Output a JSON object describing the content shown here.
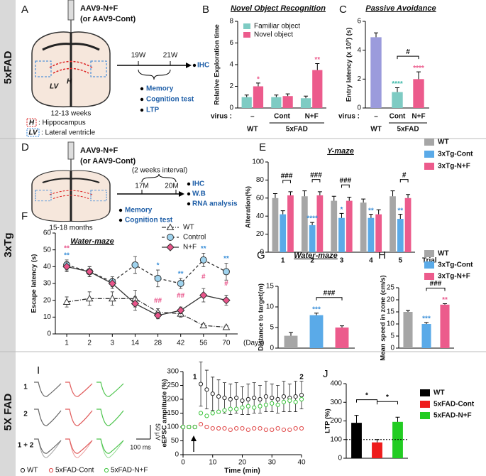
{
  "side_labels": [
    "5xFAD",
    "3xTg",
    "5X FAD"
  ],
  "panel_letters": [
    "A",
    "B",
    "C",
    "D",
    "E",
    "F",
    "G",
    "H",
    "I",
    "J"
  ],
  "diagram_a": {
    "vector": "AAV9-N+F",
    "control_vector": "(or AAV9-Cont)",
    "timepoints": [
      "19W",
      "21W"
    ],
    "endpoint": "IHC",
    "tests": [
      "Memory",
      "Cognition test",
      "LTP"
    ],
    "age": "12-13 weeks",
    "region_labels": [
      "LV",
      "H"
    ],
    "legend": [
      {
        "abbr": "H",
        "text": ": Hippocampus"
      },
      {
        "abbr": "LV",
        "text": ": Lateral ventricle"
      }
    ]
  },
  "diagram_d": {
    "vector": "AAV9-N+F",
    "control_vector": "(or AAV9-Cont)",
    "interval": "(2 weeks interval)",
    "timepoints": [
      "17M",
      "20M"
    ],
    "endpoints": [
      "IHC",
      "W.B",
      "RNA analysis"
    ],
    "tests": [
      "Memory",
      "Cognition test"
    ],
    "age": "15-18 months"
  },
  "panel_i": {
    "rows": [
      "1",
      "2",
      "1 + 2"
    ],
    "time_scale": "100 ms",
    "amp_scale": "50 μV"
  },
  "chart_data": [
    {
      "type": "bar",
      "title": "Novel Object Recognition",
      "y_label": "Relative Exploration time",
      "x_row_label": "virus :",
      "categories": [
        "–",
        "Cont",
        "N+F"
      ],
      "groups": [
        {
          "label": "WT",
          "span": [
            0,
            0
          ]
        },
        {
          "label": "5xFAD",
          "span": [
            1,
            2
          ]
        }
      ],
      "series": [
        {
          "name": "Familiar object",
          "color": "#7ecbc3",
          "values": [
            1.0,
            1.0,
            0.9
          ],
          "errors": [
            0.2,
            0.2,
            0.2
          ]
        },
        {
          "name": "Novel object",
          "color": "#ec5b8c",
          "values": [
            2.0,
            1.1,
            3.5
          ],
          "errors": [
            0.3,
            0.2,
            0.6
          ]
        }
      ],
      "ylim": [
        0,
        8
      ],
      "yticks": [
        0,
        2,
        4,
        6,
        8
      ],
      "annotations": [
        {
          "text": "*",
          "series": 1,
          "category": 0,
          "color": "#ec5b8c"
        },
        {
          "text": "**",
          "series": 1,
          "category": 2,
          "color": "#ec5b8c"
        }
      ]
    },
    {
      "type": "bar",
      "title": "Passive Avoidance",
      "y_label": "Entry latency (x 10²) (s)",
      "x_row_label": "virus :",
      "categories": [
        "–",
        "Cont",
        "N+F"
      ],
      "groups": [
        {
          "label": "WT",
          "span": [
            0,
            0
          ]
        },
        {
          "label": "5xFAD",
          "span": [
            1,
            2
          ]
        }
      ],
      "series": [
        {
          "values": [
            4.9,
            1.1,
            2.0
          ],
          "errors": [
            0.3,
            0.3,
            0.5
          ],
          "colors": [
            "#9b9bdc",
            "#7ecbc3",
            "#ec5b8c"
          ]
        }
      ],
      "ylim": [
        0,
        6
      ],
      "yticks": [
        0,
        2,
        4,
        6
      ],
      "annotations": [
        {
          "text": "****",
          "series": 0,
          "category": 1,
          "color": "#3cb8a8"
        },
        {
          "text": "****",
          "series": 0,
          "category": 2,
          "color": "#ec5b8c"
        },
        {
          "text": "#",
          "between_categories": [
            1,
            2
          ]
        }
      ]
    },
    {
      "type": "bar",
      "title": "Y-maze",
      "y_label": "Alteration(%)",
      "categories": [
        "1",
        "2",
        "3",
        "4",
        "5"
      ],
      "x_label": "Trial",
      "series": [
        {
          "name": "WT",
          "color": "#a6a6a6",
          "values": [
            60,
            62,
            57,
            55,
            62
          ],
          "errors": [
            5,
            6,
            5,
            4,
            6
          ]
        },
        {
          "name": "3xTg-Cont",
          "color": "#5aaae8",
          "values": [
            42,
            30,
            38,
            38,
            37
          ],
          "errors": [
            4,
            3,
            5,
            4,
            5
          ]
        },
        {
          "name": "3xTg-N+F",
          "color": "#ec5b8c",
          "values": [
            63,
            63,
            57,
            42,
            60
          ],
          "errors": [
            4,
            4,
            4,
            5,
            4
          ]
        }
      ],
      "ylim": [
        0,
        100
      ],
      "yticks": [
        0,
        20,
        40,
        60,
        80,
        100
      ],
      "annotations": [
        {
          "text": "****",
          "series": 1,
          "category": 1,
          "color": "#3a8fd8"
        },
        {
          "text": "*",
          "series": 1,
          "category": 2,
          "color": "#3a8fd8"
        },
        {
          "text": "**",
          "series": 1,
          "category": 3,
          "color": "#3a8fd8"
        },
        {
          "text": "**",
          "series": 1,
          "category": 4,
          "color": "#3a8fd8"
        },
        {
          "text": "###",
          "category": 0,
          "between": [
            1,
            2
          ]
        },
        {
          "text": "###",
          "category": 1,
          "between": [
            1,
            2
          ]
        },
        {
          "text": "###",
          "category": 2,
          "between": [
            1,
            2
          ]
        },
        {
          "text": "#",
          "category": 4,
          "between": [
            1,
            2
          ]
        }
      ]
    },
    {
      "type": "line",
      "title": "Water-maze",
      "y_label": "Escape latency (s)",
      "categories": [
        "1",
        "2",
        "3",
        "14",
        "28",
        "42",
        "56",
        "70"
      ],
      "x_label": "(Days)",
      "series": [
        {
          "name": "WT",
          "color": "#ffffff",
          "marker": "triangle",
          "line_style": "dashdot",
          "values": [
            19,
            21,
            21,
            21,
            13,
            12,
            5,
            4
          ],
          "errors": [
            3,
            4,
            4,
            5,
            2,
            2,
            1,
            1
          ]
        },
        {
          "name": "Control",
          "color": "#9fd3ee",
          "marker": "circle",
          "line_style": "dashed",
          "values": [
            41,
            37,
            31,
            41,
            33,
            30,
            44,
            37
          ],
          "errors": [
            3,
            3,
            3,
            5,
            5,
            3,
            4,
            5
          ]
        },
        {
          "name": "N+F",
          "color": "#e8548a",
          "marker": "diamond",
          "line_style": "solid",
          "values": [
            40,
            37,
            30,
            18,
            11,
            14,
            23,
            20
          ],
          "errors": [
            3,
            3,
            3,
            4,
            2,
            2,
            4,
            3
          ]
        }
      ],
      "ylim": [
        0,
        60
      ],
      "yticks": [
        0,
        10,
        20,
        30,
        40,
        50,
        60
      ],
      "annotations": [
        {
          "text": "**",
          "series": 1,
          "category": 0,
          "color": "#3a8fd8"
        },
        {
          "text": "**",
          "series": 1,
          "category": 0,
          "color": "#e8548a"
        },
        {
          "text": "*",
          "series": 1,
          "category": 4,
          "color": "#3a8fd8"
        },
        {
          "text": "**",
          "series": 1,
          "category": 5,
          "color": "#3a8fd8"
        },
        {
          "text": "**",
          "series": 1,
          "category": 6,
          "color": "#3a8fd8"
        },
        {
          "text": "**",
          "series": 1,
          "category": 7,
          "color": "#3a8fd8"
        },
        {
          "text": "##",
          "series": 2,
          "category": 4,
          "color": "#e8548a"
        },
        {
          "text": "##",
          "series": 2,
          "category": 5,
          "color": "#e8548a"
        },
        {
          "text": "#",
          "series": 2,
          "category": 6,
          "color": "#e8548a"
        },
        {
          "text": "#",
          "series": 2,
          "category": 7,
          "color": "#e8548a"
        }
      ]
    },
    {
      "type": "bar",
      "title": "Water-maze",
      "y_label": "Distance to target(m)",
      "series": [
        {
          "values": [
            3,
            8,
            5
          ],
          "errors": [
            0.8,
            0.5,
            0.4
          ],
          "colors": [
            "#a6a6a6",
            "#5aaae8",
            "#ec5b8c"
          ]
        }
      ],
      "ylim": [
        0,
        15
      ],
      "yticks": [
        0,
        5,
        10,
        15
      ],
      "annotations": [
        {
          "text": "***",
          "series": 0,
          "category": 1,
          "color": "#3a8fd8"
        },
        {
          "text": "###",
          "between_categories": [
            1,
            2
          ]
        }
      ]
    },
    {
      "type": "bar",
      "y_label": "Mean speed in zone (cm/s)",
      "legend": [
        "WT",
        "3xTg-Cont",
        "3xTg-N+F"
      ],
      "series": [
        {
          "values": [
            15,
            10,
            18
          ],
          "errors": [
            0.6,
            0.6,
            0.4
          ],
          "colors": [
            "#a6a6a6",
            "#5aaae8",
            "#ec5b8c"
          ]
        }
      ],
      "ylim": [
        0,
        25
      ],
      "yticks": [
        0,
        5,
        10,
        15,
        20,
        25
      ],
      "annotations": [
        {
          "text": "***",
          "series": 0,
          "category": 1,
          "color": "#3a8fd8"
        },
        {
          "text": "**",
          "series": 0,
          "category": 2,
          "color": "#e8548a"
        },
        {
          "text": "###",
          "between_categories": [
            1,
            2
          ]
        }
      ]
    },
    {
      "type": "line",
      "y_label": "eEPSC amplitude (%)",
      "x_label": "Time (min)",
      "x": [
        0,
        2,
        4,
        6,
        8,
        10,
        12,
        14,
        16,
        18,
        20,
        22,
        24,
        26,
        28,
        30,
        32,
        34,
        36,
        38,
        40
      ],
      "xlim": [
        0,
        40
      ],
      "xticks": [
        0,
        10,
        20,
        30,
        40
      ],
      "series": [
        {
          "name": "WT",
          "color": "#222222",
          "marker": "open-circle",
          "values": [
            100,
            100,
            100,
            255,
            235,
            220,
            210,
            205,
            200,
            205,
            195,
            200,
            205,
            200,
            210,
            205,
            200,
            210,
            205,
            210,
            215
          ],
          "errors": [
            5,
            5,
            5,
            80,
            70,
            60,
            60,
            55,
            55,
            55,
            50,
            55,
            55,
            50,
            55,
            50,
            50,
            55,
            50,
            55,
            50
          ]
        },
        {
          "name": "5xFAD-Cont",
          "color": "#e04848",
          "marker": "open-circle",
          "values": [
            100,
            100,
            100,
            110,
            100,
            95,
            95,
            95,
            90,
            95,
            95,
            90,
            95,
            95,
            90,
            90,
            95,
            90,
            90,
            95,
            95
          ]
        },
        {
          "name": "5xFAD-N+F",
          "color": "#3cc43c",
          "marker": "open-circle",
          "values": [
            100,
            100,
            100,
            150,
            140,
            150,
            155,
            160,
            165,
            165,
            170,
            175,
            170,
            175,
            180,
            185,
            180,
            190,
            195,
            190,
            200
          ]
        }
      ],
      "ylim": [
        0,
        300
      ],
      "yticks": [
        0,
        50,
        100,
        150,
        200,
        250,
        300
      ],
      "annotations": [
        {
          "text": "1",
          "x": 4
        },
        {
          "text": "2",
          "x": 40
        }
      ]
    },
    {
      "type": "bar",
      "y_label": "LTP (%)",
      "legend": [
        "WT",
        "5xFAD-Cont",
        "5xFAD-N+F"
      ],
      "series": [
        {
          "values": [
            190,
            85,
            195
          ],
          "errors": [
            40,
            15,
            25
          ],
          "colors": [
            "#000000",
            "#ee1c1c",
            "#22cc22"
          ]
        }
      ],
      "ylim": [
        0,
        400
      ],
      "yticks": [
        0,
        100,
        200,
        300,
        400
      ],
      "reference_line": 100,
      "annotations": [
        {
          "text": "*",
          "between_categories": [
            0,
            1
          ]
        },
        {
          "text": "*",
          "between_categories": [
            1,
            2
          ]
        }
      ]
    }
  ]
}
